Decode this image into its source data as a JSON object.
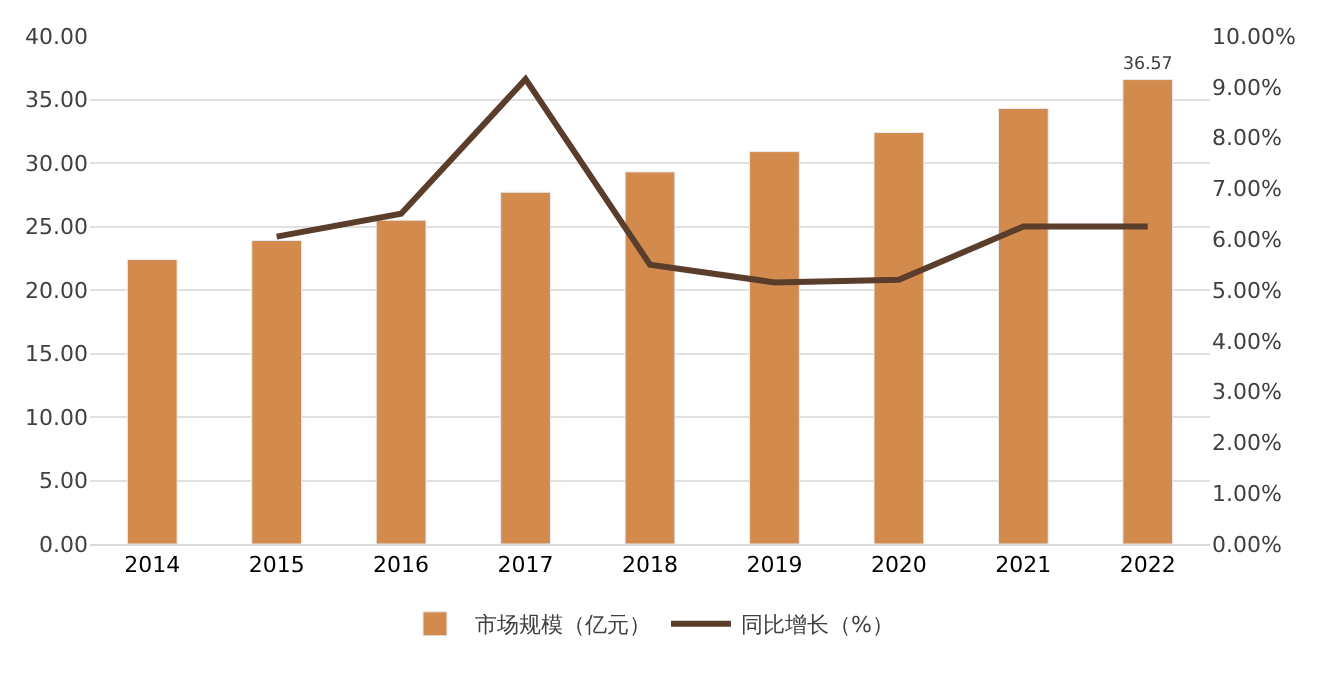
{
  "chart_data": {
    "type": "bar",
    "categories": [
      "2014",
      "2015",
      "2016",
      "2017",
      "2018",
      "2019",
      "2020",
      "2021",
      "2022"
    ],
    "series": [
      {
        "name": "市场规模（亿元）",
        "color": "#d38b4d",
        "values": [
          22.4,
          23.9,
          25.5,
          27.7,
          29.3,
          30.9,
          32.4,
          34.3,
          36.57
        ],
        "value_labels": [
          null,
          null,
          null,
          null,
          null,
          null,
          null,
          null,
          "36.57"
        ]
      },
      {
        "name": "同比增长（%）",
        "type": "line",
        "axis": "y2",
        "color": "#5b3d2b",
        "values": [
          null,
          6.05,
          6.5,
          9.15,
          5.5,
          5.15,
          5.2,
          6.25,
          6.25
        ]
      }
    ],
    "ylim": [
      0,
      40
    ],
    "yticks": [
      {
        "value": 0,
        "label": "0.00"
      },
      {
        "value": 5,
        "label": "5.00"
      },
      {
        "value": 10,
        "label": "10.00"
      },
      {
        "value": 15,
        "label": "15.00"
      },
      {
        "value": 20,
        "label": "20.00"
      },
      {
        "value": 25,
        "label": "25.00"
      },
      {
        "value": 30,
        "label": "30.00"
      },
      {
        "value": 35,
        "label": "35.00"
      },
      {
        "value": 40,
        "label": "40.00"
      }
    ],
    "y2lim": [
      0,
      10
    ],
    "y2ticks": [
      {
        "value": 0,
        "label": "0.00%"
      },
      {
        "value": 1,
        "label": "1.00%"
      },
      {
        "value": 2,
        "label": "2.00%"
      },
      {
        "value": 3,
        "label": "3.00%"
      },
      {
        "value": 4,
        "label": "4.00%"
      },
      {
        "value": 5,
        "label": "5.00%"
      },
      {
        "value": 6,
        "label": "6.00%"
      },
      {
        "value": 7,
        "label": "7.00%"
      },
      {
        "value": 8,
        "label": "8.00%"
      },
      {
        "value": 9,
        "label": "9.00%"
      },
      {
        "value": 10,
        "label": "10.00%"
      }
    ],
    "grid": "y",
    "legend": "bottom",
    "marker": "none",
    "line_style": "solid"
  }
}
